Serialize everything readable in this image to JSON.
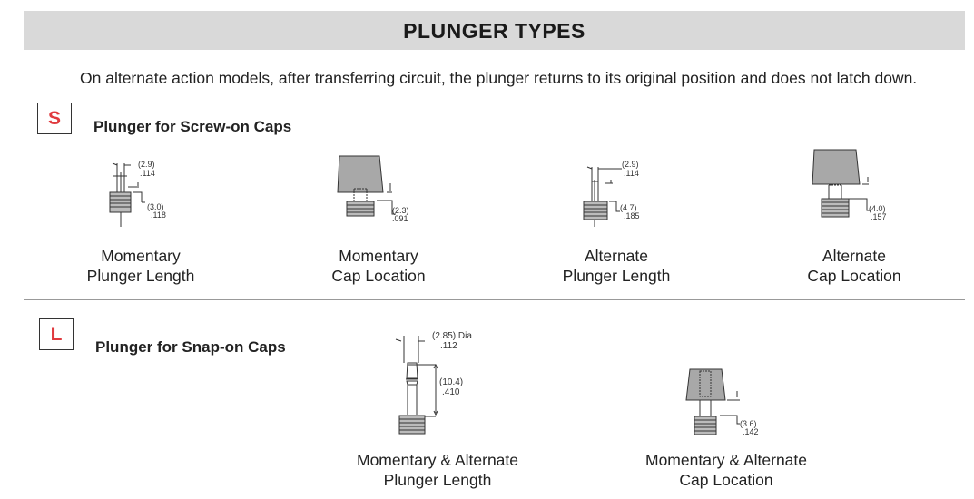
{
  "header": {
    "title": "PLUNGER TYPES"
  },
  "description": "On alternate action models, after transferring circuit, the plunger returns to its original position and does not latch down.",
  "colors": {
    "header_bg": "#d9d9d9",
    "badge_letter": "#e03a3e"
  },
  "sections": [
    {
      "badge": "S",
      "title": "Plunger for Screw-on Caps",
      "items": [
        {
          "caption_1": "Momentary",
          "caption_2": "Plunger Length",
          "dim_a_mm": "(2.9)",
          "dim_a_in": ".114",
          "dim_b_mm": "(3.0)",
          "dim_b_in": ".118"
        },
        {
          "caption_1": "Momentary",
          "caption_2": "Cap Location",
          "dim_b_mm": "(2.3)",
          "dim_b_in": ".091"
        },
        {
          "caption_1": "Alternate",
          "caption_2": "Plunger Length",
          "dim_a_mm": "(2.9)",
          "dim_a_in": ".114",
          "dim_b_mm": "(4.7)",
          "dim_b_in": ".185"
        },
        {
          "caption_1": "Alternate",
          "caption_2": "Cap Location",
          "dim_b_mm": "(4.0)",
          "dim_b_in": ".157"
        }
      ]
    },
    {
      "badge": "L",
      "title": "Plunger for Snap-on Caps",
      "items": [
        {
          "caption_1": "Momentary & Alternate",
          "caption_2": "Plunger Length",
          "dim_a_mm": "(2.85) Dia",
          "dim_a_in": ".112",
          "dim_b_mm": "(10.4)",
          "dim_b_in": ".410"
        },
        {
          "caption_1": "Momentary & Alternate",
          "caption_2": "Cap Location",
          "dim_b_mm": "(3.6)",
          "dim_b_in": ".142"
        }
      ]
    }
  ]
}
